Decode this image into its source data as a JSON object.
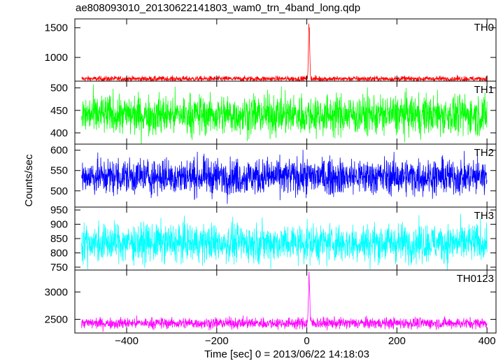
{
  "chart_data": {
    "type": "line",
    "title": "ae808093010_20130622141803_wam0_trn_4band_long.qdp",
    "xlabel": "Time [sec] 0 = 2013/06/22 14:18:03",
    "ylabel": "Counts/sec",
    "xlim": [
      -515,
      420
    ],
    "xticks": [
      -400,
      -200,
      0,
      200,
      400
    ],
    "xtick_labels": [
      "−400",
      "−200",
      "0",
      "200",
      "400"
    ],
    "grid": false,
    "series": [
      {
        "name": "TH0",
        "color": "#ff0000",
        "ylim": [
          600,
          1650
        ],
        "yticks": [
          1000,
          1500
        ],
        "baseline": 640,
        "noise": 40,
        "burst_peak": 1650,
        "burst_time": 5
      },
      {
        "name": "TH1",
        "color": "#00ff00",
        "ylim": [
          375,
          515
        ],
        "yticks": [
          400,
          450,
          500
        ],
        "baseline": 440,
        "noise": 40
      },
      {
        "name": "TH2",
        "color": "#0000ff",
        "ylim": [
          460,
          615
        ],
        "yticks": [
          500,
          550,
          600
        ],
        "baseline": 535,
        "noise": 40
      },
      {
        "name": "TH3",
        "color": "#00ffff",
        "ylim": [
          740,
          960
        ],
        "yticks": [
          750,
          800,
          850,
          900,
          950
        ],
        "baseline": 835,
        "noise": 60
      },
      {
        "name": "TH0123",
        "color": "#ff00ff",
        "ylim": [
          2250,
          3400
        ],
        "yticks": [
          2500,
          3000
        ],
        "baseline": 2430,
        "noise": 90,
        "burst_peak": 3400,
        "burst_time": 5
      }
    ]
  }
}
